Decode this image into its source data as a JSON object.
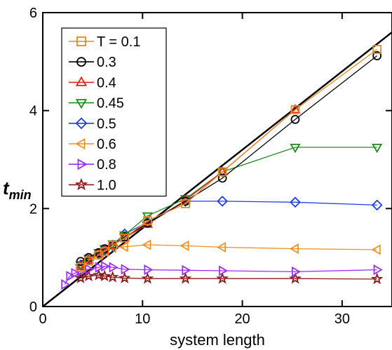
{
  "chart_data": {
    "type": "line",
    "title": "",
    "xlabel": "system length",
    "ylabel_main": "t",
    "ylabel_sub": "min",
    "xlim": [
      0,
      35
    ],
    "ylim": [
      0,
      6
    ],
    "x_ticks": [
      0,
      10,
      20,
      30
    ],
    "y_ticks": [
      0,
      2,
      4,
      6
    ],
    "grid": false,
    "legend_position": "top-left",
    "reference_line": {
      "from": [
        0,
        0
      ],
      "to": [
        35,
        5.6
      ],
      "color": "#000000"
    },
    "series": [
      {
        "name": "T = 0.1",
        "color": "#e8871e",
        "marker": "square",
        "points": [
          [
            3.8,
            0.8
          ],
          [
            4.6,
            0.93
          ],
          [
            5.6,
            1.05
          ],
          [
            6.2,
            1.12
          ],
          [
            7.0,
            1.25
          ],
          [
            8.2,
            1.4
          ],
          [
            10.5,
            1.75
          ],
          [
            14.3,
            2.1
          ],
          [
            18.0,
            2.75
          ],
          [
            25.3,
            4.02
          ],
          [
            33.5,
            5.25
          ]
        ]
      },
      {
        "name": "0.3",
        "color": "#000000",
        "marker": "circle",
        "points": [
          [
            3.8,
            0.92
          ],
          [
            4.6,
            1.0
          ],
          [
            5.6,
            1.1
          ],
          [
            6.2,
            1.18
          ],
          [
            7.0,
            1.25
          ],
          [
            8.2,
            1.42
          ],
          [
            10.5,
            1.7
          ],
          [
            14.3,
            2.15
          ],
          [
            18.0,
            2.62
          ],
          [
            25.3,
            3.82
          ],
          [
            33.5,
            5.12
          ]
        ]
      },
      {
        "name": "0.4",
        "color": "#e82020",
        "marker": "triangle-up",
        "points": [
          [
            3.8,
            0.82
          ],
          [
            4.6,
            0.95
          ],
          [
            5.6,
            1.08
          ],
          [
            6.2,
            1.15
          ],
          [
            7.0,
            1.25
          ],
          [
            8.2,
            1.4
          ],
          [
            10.5,
            1.68
          ],
          [
            14.3,
            2.17
          ],
          [
            18.0,
            2.75
          ],
          [
            25.3,
            4.02
          ]
        ]
      },
      {
        "name": "0.45",
        "color": "#208a20",
        "marker": "triangle-down",
        "points": [
          [
            3.8,
            0.85
          ],
          [
            4.6,
            0.98
          ],
          [
            5.6,
            1.1
          ],
          [
            6.2,
            1.18
          ],
          [
            7.0,
            1.28
          ],
          [
            8.2,
            1.46
          ],
          [
            10.5,
            1.85
          ],
          [
            14.3,
            2.2
          ],
          [
            18.0,
            2.75
          ],
          [
            25.3,
            3.25
          ],
          [
            33.5,
            3.25
          ]
        ]
      },
      {
        "name": "0.5",
        "color": "#1f3fe0",
        "marker": "diamond",
        "points": [
          [
            3.8,
            0.85
          ],
          [
            4.6,
            0.95
          ],
          [
            5.6,
            1.07
          ],
          [
            6.2,
            1.15
          ],
          [
            7.0,
            1.25
          ],
          [
            8.2,
            1.48
          ],
          [
            10.5,
            1.72
          ],
          [
            14.3,
            2.15
          ],
          [
            18.0,
            2.15
          ],
          [
            25.3,
            2.13
          ],
          [
            33.5,
            2.07
          ]
        ]
      },
      {
        "name": "0.6",
        "color": "#f09020",
        "marker": "triangle-left",
        "points": [
          [
            3.8,
            0.8
          ],
          [
            4.6,
            0.93
          ],
          [
            5.6,
            1.05
          ],
          [
            6.2,
            1.12
          ],
          [
            7.0,
            1.2
          ],
          [
            8.2,
            1.22
          ],
          [
            10.5,
            1.26
          ],
          [
            14.3,
            1.24
          ],
          [
            18.0,
            1.21
          ],
          [
            25.3,
            1.18
          ],
          [
            33.5,
            1.16
          ]
        ]
      },
      {
        "name": "0.8",
        "color": "#9b30f0",
        "marker": "triangle-right",
        "points": [
          [
            2.2,
            0.45
          ],
          [
            2.7,
            0.62
          ],
          [
            3.2,
            0.68
          ],
          [
            3.8,
            0.72
          ],
          [
            4.6,
            0.76
          ],
          [
            5.6,
            0.8
          ],
          [
            6.2,
            0.82
          ],
          [
            7.0,
            0.8
          ],
          [
            8.2,
            0.76
          ],
          [
            10.5,
            0.75
          ],
          [
            14.3,
            0.74
          ],
          [
            18.0,
            0.73
          ],
          [
            25.3,
            0.71
          ],
          [
            33.5,
            0.75
          ]
        ]
      },
      {
        "name": "1.0",
        "color": "#8b1a1a",
        "marker": "star",
        "points": [
          [
            3.8,
            0.58
          ],
          [
            4.6,
            0.62
          ],
          [
            5.6,
            0.64
          ],
          [
            6.2,
            0.62
          ],
          [
            7.0,
            0.6
          ],
          [
            8.2,
            0.58
          ],
          [
            10.5,
            0.57
          ],
          [
            14.3,
            0.57
          ],
          [
            18.0,
            0.57
          ],
          [
            25.3,
            0.57
          ],
          [
            33.5,
            0.56
          ]
        ]
      }
    ]
  }
}
